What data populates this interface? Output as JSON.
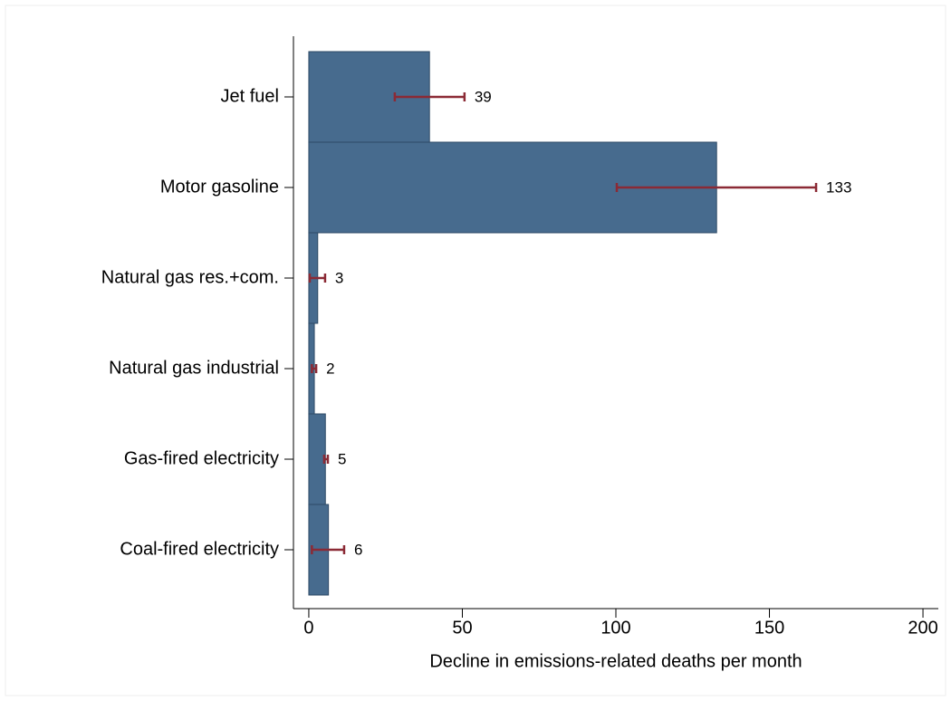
{
  "chart_data": {
    "type": "bar",
    "orientation": "horizontal",
    "categories": [
      "Jet fuel",
      "Motor gasoline",
      "Natural gas res.+com.",
      "Natural gas industrial",
      "Gas-fired electricity",
      "Coal-fired electricity"
    ],
    "values": [
      39.3,
      132.8,
      2.9,
      1.8,
      5.4,
      6.4
    ],
    "value_labels": [
      "39",
      "133",
      "3",
      "2",
      "5",
      "6"
    ],
    "error_low": [
      28,
      100.3,
      0.3,
      1,
      5,
      1
    ],
    "error_high": [
      50.7,
      165.2,
      5.3,
      2.4,
      6.2,
      11.5
    ],
    "color": "#476b8e",
    "error_color": "#8b2a35",
    "xlabel": "Decline in emissions-related deaths per month",
    "xlim": [
      -5,
      205
    ],
    "xticks": [
      0,
      50,
      100,
      150,
      200
    ]
  }
}
